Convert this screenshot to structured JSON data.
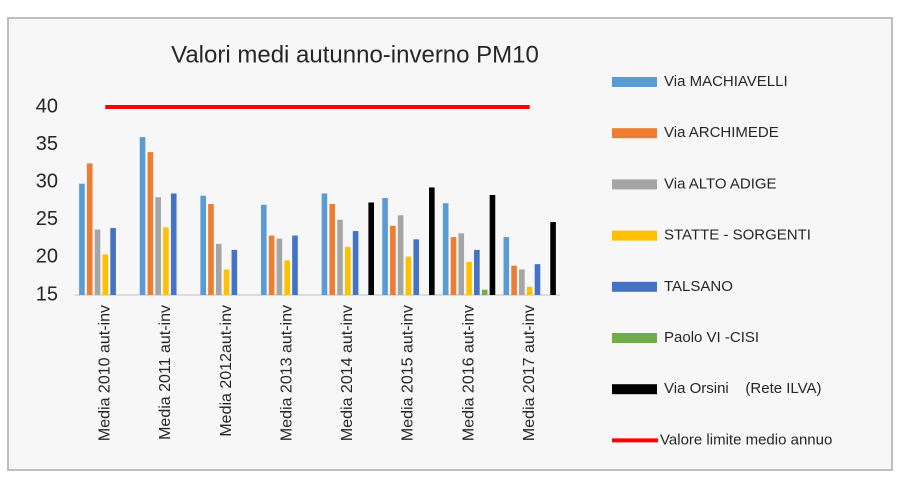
{
  "chart_data": {
    "type": "bar",
    "title": "Valori medi autunno-inverno PM10",
    "categories": [
      "Media 2010 aut-inv",
      "Media 2011 aut-inv",
      "Media 2012aut-inv",
      "Media 2013 aut-inv",
      "Media 2014 aut-inv",
      "Media 2015 aut-inv",
      "Media 2016 aut-inv",
      "Media 2017 aut-inv"
    ],
    "series": [
      {
        "name": "Via MACHIAVELLI",
        "color": "#5b9bd5",
        "values": [
          29.8,
          36,
          28.2,
          27,
          28.5,
          27.9,
          27.2,
          22.7
        ]
      },
      {
        "name": "Via ARCHIMEDE",
        "color": "#ed7d31",
        "values": [
          32.5,
          34,
          27.1,
          22.9,
          27.1,
          24.2,
          22.7,
          18.9
        ]
      },
      {
        "name": "Via ALTO ADIGE",
        "color": "#a5a5a5",
        "values": [
          23.7,
          28,
          21.8,
          22.5,
          25,
          25.6,
          23.2,
          18.4
        ]
      },
      {
        "name": "STATTE - SORGENTI",
        "color": "#ffc000",
        "values": [
          20.4,
          24,
          18.4,
          19.6,
          21.4,
          20.1,
          19.4,
          16.1
        ]
      },
      {
        "name": "TALSANO",
        "color": "#4472c4",
        "values": [
          23.9,
          28.5,
          21,
          22.9,
          23.5,
          22.4,
          21,
          19.1
        ]
      },
      {
        "name": "Paolo VI -CISI",
        "color": "#70ad47",
        "values": [
          null,
          null,
          null,
          null,
          null,
          null,
          15.7,
          null
        ]
      },
      {
        "name": "Via Orsini    (Rete ILVA)",
        "color": "#000000",
        "values": [
          null,
          null,
          null,
          null,
          27.3,
          29.3,
          28.3,
          24.7
        ]
      },
      {
        "name": "Valore limite medio annuo",
        "color": "#ff0000",
        "type": "line",
        "values": [
          40,
          40,
          40,
          40,
          40,
          40,
          40,
          40
        ]
      }
    ],
    "ylim": [
      15,
      40
    ],
    "yticks": [
      15,
      20,
      25,
      30,
      35,
      40
    ],
    "grid": false
  }
}
